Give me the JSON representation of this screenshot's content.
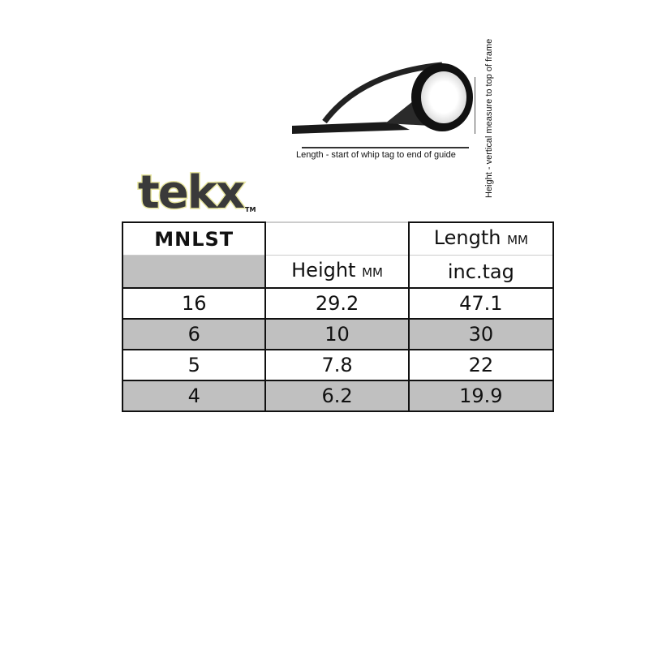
{
  "diagram": {
    "length_caption": "Length - start of whip tag to end of guide",
    "height_caption": "Height - vertical measure to top of frame",
    "image": "line-guide-photo"
  },
  "logo": {
    "text": "tekx",
    "trademark": "TM",
    "fill_color": "#3a3a3a",
    "outline_color": "#e8e6a0"
  },
  "table": {
    "model": "MNLST",
    "length_header": "Length",
    "length_unit": "MM",
    "length_sub": "inc.tag",
    "height_header": "Height",
    "height_unit": "MM",
    "rows": [
      {
        "size": "16",
        "height": "29.2",
        "length": "47.1",
        "shaded": false
      },
      {
        "size": "6",
        "height": "10",
        "length": "30",
        "shaded": true
      },
      {
        "size": "5",
        "height": "7.8",
        "length": "22",
        "shaded": false
      },
      {
        "size": "4",
        "height": "6.2",
        "length": "19.9",
        "shaded": true
      }
    ],
    "shade_color": "#c0c0c0"
  }
}
